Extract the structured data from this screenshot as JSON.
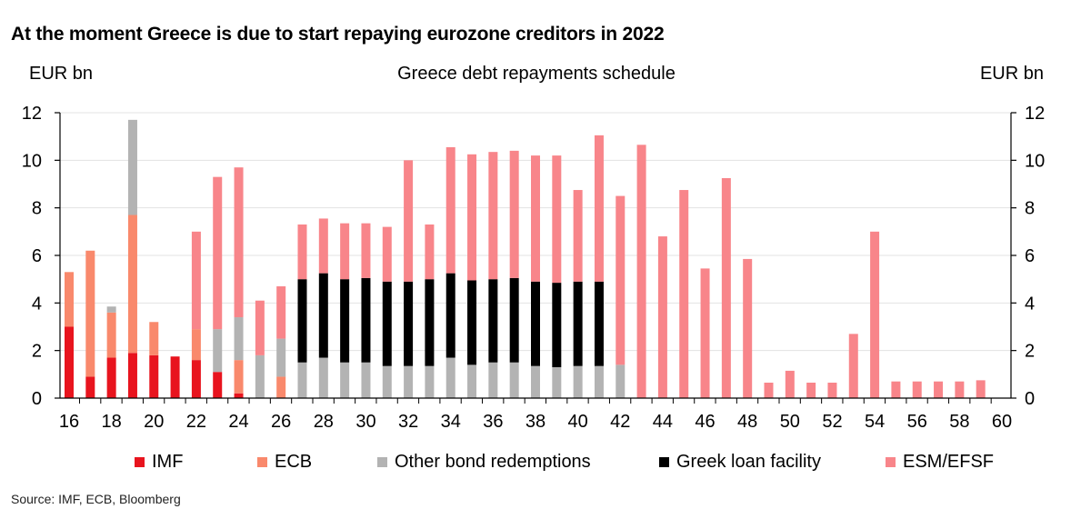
{
  "headline": "At the moment Greece is due to start repaying eurozone creditors in 2022",
  "source": "Source: IMF, ECB, Bloomberg",
  "chart_data": {
    "type": "bar",
    "stacked": true,
    "title": "Greece debt repayments schedule",
    "ylabel_left": "EUR bn",
    "ylabel_right": "EUR bn",
    "xlabel": "",
    "ylim": [
      0,
      12
    ],
    "xlim": [
      16,
      60
    ],
    "yticks": [
      0,
      2,
      4,
      6,
      8,
      10,
      12
    ],
    "yticks_right": [
      0,
      2,
      4,
      6,
      8,
      10,
      12
    ],
    "xticks": [
      16,
      18,
      20,
      22,
      24,
      26,
      28,
      30,
      32,
      34,
      36,
      38,
      40,
      42,
      44,
      46,
      48,
      50,
      52,
      54,
      56,
      58,
      60
    ],
    "grid": true,
    "legend_position": "bottom",
    "x": [
      16,
      17,
      18,
      19,
      20,
      21,
      22,
      23,
      24,
      25,
      26,
      27,
      28,
      29,
      30,
      31,
      32,
      33,
      34,
      35,
      36,
      37,
      38,
      39,
      40,
      41,
      42,
      43,
      44,
      45,
      46,
      47,
      48,
      49,
      50,
      51,
      52,
      53,
      54,
      55,
      56,
      57,
      58,
      59
    ],
    "series": [
      {
        "name": "IMF",
        "color": "#e8141e",
        "values": [
          3.0,
          0.9,
          1.7,
          1.9,
          1.8,
          1.75,
          1.6,
          1.1,
          0.2,
          0,
          0,
          0,
          0,
          0,
          0,
          0,
          0,
          0,
          0,
          0,
          0,
          0,
          0,
          0,
          0,
          0,
          0,
          0,
          0,
          0,
          0,
          0,
          0,
          0,
          0,
          0,
          0,
          0,
          0,
          0,
          0,
          0,
          0,
          0
        ]
      },
      {
        "name": "ECB",
        "color": "#f9896c",
        "values": [
          2.3,
          5.3,
          1.9,
          5.8,
          1.4,
          0,
          1.3,
          0,
          1.4,
          0,
          0.9,
          0,
          0,
          0,
          0,
          0,
          0,
          0,
          0,
          0,
          0,
          0,
          0,
          0,
          0,
          0,
          0,
          0,
          0,
          0,
          0,
          0,
          0,
          0,
          0,
          0,
          0,
          0,
          0,
          0,
          0,
          0,
          0,
          0
        ]
      },
      {
        "name": "Other bond redemptions",
        "color": "#b3b3b3",
        "values": [
          0,
          0,
          0.25,
          4.0,
          0,
          0,
          0,
          1.8,
          1.8,
          1.8,
          1.6,
          1.5,
          1.7,
          1.5,
          1.5,
          1.35,
          1.35,
          1.35,
          1.7,
          1.4,
          1.5,
          1.5,
          1.35,
          1.3,
          1.35,
          1.35,
          1.4,
          0,
          0,
          0,
          0,
          0,
          0,
          0,
          0,
          0,
          0,
          0,
          0,
          0,
          0,
          0,
          0,
          0
        ]
      },
      {
        "name": "Greek loan facility",
        "color": "#000000",
        "values": [
          0,
          0,
          0,
          0,
          0,
          0,
          0,
          0,
          0,
          0,
          0,
          3.5,
          3.55,
          3.5,
          3.55,
          3.55,
          3.55,
          3.65,
          3.55,
          3.55,
          3.5,
          3.55,
          3.55,
          3.55,
          3.55,
          3.55,
          0,
          0,
          0,
          0,
          0,
          0,
          0,
          0,
          0,
          0,
          0,
          0,
          0,
          0,
          0,
          0,
          0,
          0
        ]
      },
      {
        "name": "ESM/EFSF",
        "color": "#f8858a",
        "values": [
          0,
          0,
          0,
          0,
          0,
          0,
          4.1,
          6.4,
          6.3,
          2.3,
          2.2,
          2.3,
          2.3,
          2.35,
          2.3,
          2.3,
          5.1,
          2.3,
          5.3,
          5.3,
          5.35,
          5.35,
          5.3,
          5.35,
          3.85,
          6.15,
          7.1,
          10.65,
          6.8,
          8.75,
          5.45,
          9.25,
          5.85,
          0.65,
          1.15,
          0.65,
          0.65,
          2.7,
          7.0,
          0.7,
          0.7,
          0.7,
          0.7,
          0.75
        ]
      }
    ]
  }
}
